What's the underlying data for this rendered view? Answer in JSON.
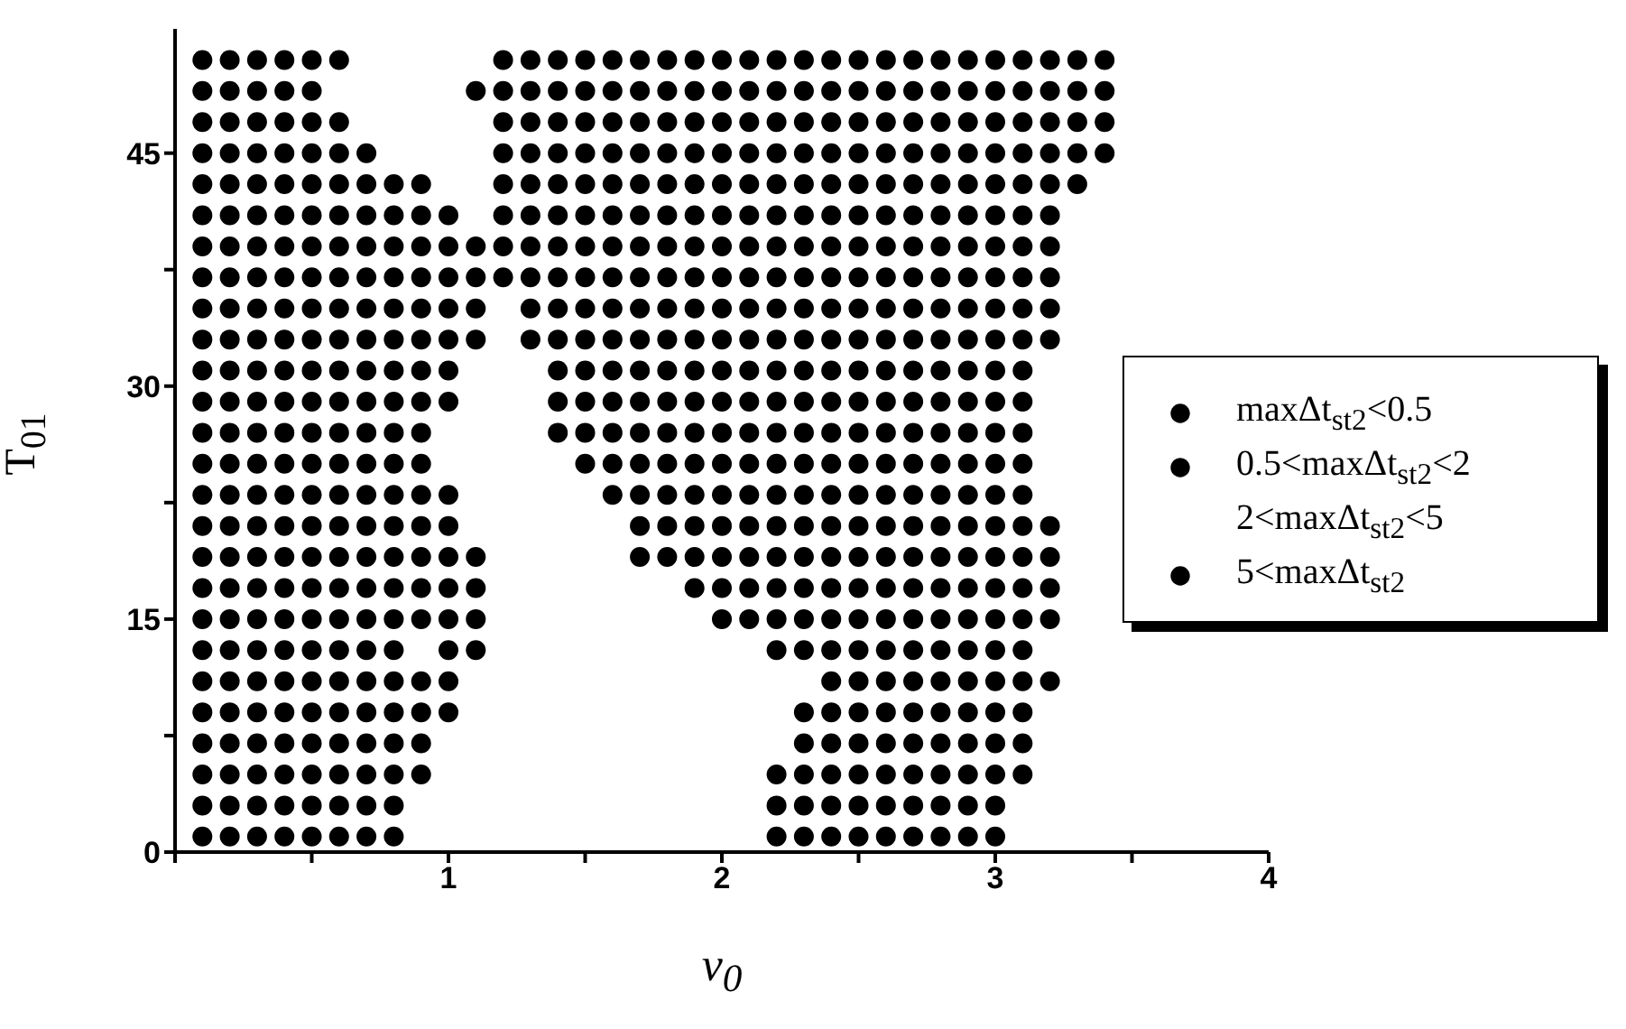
{
  "chart_data": {
    "type": "scatter",
    "xlabel": "v$_{0}$",
    "ylabel": "T$_{01}$",
    "xlim": [
      0,
      4
    ],
    "ylim": [
      0,
      53
    ],
    "xticks": [
      {
        "value": 0,
        "label": null
      },
      {
        "value": 0.5,
        "label": null
      },
      1,
      {
        "value": 1.5,
        "label": null
      },
      2,
      {
        "value": 2.5,
        "label": null
      },
      3,
      {
        "value": 3.5,
        "label": null
      },
      4
    ],
    "yticks": [
      0,
      {
        "value": 7.5,
        "label": null
      },
      15,
      {
        "value": 22.5,
        "label": null
      },
      30,
      {
        "value": 37.5,
        "label": null
      },
      45
    ],
    "grid": false,
    "legend": "right",
    "marker": "circle",
    "series": [
      {
        "name": "maxΔt$_{st2}$<0.5",
        "color": "#000000",
        "x": [
          0.1,
          0.1,
          0.1,
          0.1,
          0.1,
          0.1,
          0.1,
          0.1,
          0.1,
          0.1,
          0.1,
          0.1,
          0.1,
          0.1,
          0.1,
          0.1,
          0.1,
          0.1,
          0.1,
          0.1,
          0.1,
          0.1,
          0.1,
          0.1,
          0.1,
          0.1,
          0.2,
          0.2,
          0.2,
          0.2,
          0.2,
          0.2,
          0.2,
          0.2,
          0.2,
          0.2,
          0.2,
          0.2,
          0.2,
          0.2,
          0.2,
          0.2,
          0.2,
          0.2,
          0.2,
          0.2,
          0.2,
          0.2,
          0.2,
          0.2,
          0.2,
          0.2,
          0.3,
          0.3,
          0.3,
          0.3,
          0.3,
          0.3,
          0.3,
          0.3,
          0.3,
          0.3,
          0.3,
          0.3,
          0.3,
          0.3,
          0.3,
          0.3,
          0.3,
          0.3,
          0.3,
          0.3,
          0.3,
          0.3,
          0.3,
          0.3,
          0.3,
          0.3,
          0.4,
          0.4,
          0.4,
          0.4,
          0.4,
          0.4,
          0.4,
          0.4,
          0.4,
          0.4,
          0.4,
          0.4,
          0.4,
          0.4,
          0.4,
          0.4,
          0.4,
          0.4,
          0.4,
          0.4,
          0.4,
          0.4,
          0.4,
          0.4,
          0.4,
          0.4,
          0.5,
          0.5,
          0.5,
          0.5,
          0.5,
          0.5,
          0.5,
          0.5,
          0.5,
          0.5,
          0.5,
          0.5,
          0.5,
          0.5,
          0.5,
          0.5,
          0.5,
          0.5,
          0.5,
          0.5,
          0.5,
          0.5,
          0.5,
          0.5,
          0.5,
          0.5,
          0.6,
          0.6,
          0.6,
          0.6,
          0.6,
          0.6,
          0.6,
          0.6,
          0.6,
          0.6,
          0.6,
          0.6,
          0.6,
          0.6,
          0.6,
          0.6,
          0.6,
          0.6,
          0.6,
          0.6,
          0.6,
          0.6,
          0.6,
          0.6,
          0.6,
          0.7,
          0.7,
          0.7,
          0.7,
          0.7,
          0.7,
          0.7,
          0.7,
          0.7,
          0.7,
          0.7,
          0.7,
          0.7,
          0.7,
          0.7,
          0.7,
          0.7,
          0.7,
          0.7,
          0.7,
          0.7,
          0.7,
          0.7,
          0.8,
          0.8,
          0.8,
          0.8,
          0.8,
          0.8,
          0.8,
          0.8,
          0.8,
          0.8,
          0.8,
          0.8,
          0.8,
          0.8,
          0.8,
          0.8,
          0.8,
          0.8,
          0.8,
          0.8,
          0.8,
          0.8,
          0.9,
          0.9,
          0.9,
          0.9,
          0.9,
          0.9,
          0.9,
          0.9,
          0.9,
          0.9,
          0.9,
          0.9,
          0.9,
          0.9,
          0.9,
          0.9,
          0.9,
          0.9,
          0.9,
          1.0,
          1.0,
          1.0,
          1.0,
          1.0,
          1.0,
          1.0,
          1.0,
          1.0,
          1.0,
          1.0,
          1.0,
          1.0,
          1.0,
          1.0,
          1.1,
          1.1,
          1.1,
          1.1,
          1.1,
          1.1,
          1.1,
          1.1,
          1.1,
          1.2,
          1.2,
          1.2,
          1.2,
          1.2,
          1.2,
          1.2,
          1.2,
          1.3,
          1.3,
          1.3,
          1.3,
          1.3,
          1.3,
          1.3,
          1.3,
          1.3,
          1.3,
          1.4,
          1.4,
          1.4,
          1.4,
          1.4,
          1.4,
          1.4,
          1.4,
          1.4,
          1.4,
          1.4,
          1.4,
          1.4,
          1.5,
          1.5,
          1.5,
          1.5,
          1.5,
          1.5,
          1.5,
          1.5,
          1.5,
          1.5,
          1.5,
          1.5,
          1.5,
          1.5,
          1.6,
          1.6,
          1.6,
          1.6,
          1.6,
          1.6,
          1.6,
          1.6,
          1.6,
          1.6,
          1.6,
          1.6,
          1.6,
          1.6,
          1.6,
          1.7,
          1.7,
          1.7,
          1.7,
          1.7,
          1.7,
          1.7,
          1.7,
          1.7,
          1.7,
          1.7,
          1.7,
          1.7,
          1.7,
          1.7,
          1.7,
          1.7,
          1.8,
          1.8,
          1.8,
          1.8,
          1.8,
          1.8,
          1.8,
          1.8,
          1.8,
          1.8,
          1.8,
          1.8,
          1.8,
          1.8,
          1.8,
          1.8,
          1.8,
          1.9,
          1.9,
          1.9,
          1.9,
          1.9,
          1.9,
          1.9,
          1.9,
          1.9,
          1.9,
          1.9,
          1.9,
          1.9,
          1.9,
          1.9,
          1.9,
          1.9,
          1.9,
          2.0,
          2.0,
          2.0,
          2.0,
          2.0,
          2.0,
          2.0,
          2.0,
          2.0,
          2.0,
          2.0,
          2.0,
          2.0,
          2.0,
          2.0,
          2.0,
          2.0,
          2.0,
          2.0,
          2.1,
          2.1,
          2.1,
          2.1,
          2.1,
          2.1,
          2.1,
          2.1,
          2.1,
          2.1,
          2.1,
          2.1,
          2.1,
          2.1,
          2.1,
          2.1,
          2.1,
          2.1,
          2.1,
          2.2,
          2.2,
          2.2,
          2.2,
          2.2,
          2.2,
          2.2,
          2.2,
          2.2,
          2.2,
          2.2,
          2.2,
          2.2,
          2.2,
          2.2,
          2.2,
          2.2,
          2.2,
          2.2,
          2.2,
          2.2,
          2.2,
          2.2,
          2.3,
          2.3,
          2.3,
          2.3,
          2.3,
          2.3,
          2.3,
          2.3,
          2.3,
          2.3,
          2.3,
          2.3,
          2.3,
          2.3,
          2.3,
          2.3,
          2.3,
          2.3,
          2.3,
          2.3,
          2.3,
          2.3,
          2.3,
          2.3,
          2.3,
          2.4,
          2.4,
          2.4,
          2.4,
          2.4,
          2.4,
          2.4,
          2.4,
          2.4,
          2.4,
          2.4,
          2.4,
          2.4,
          2.4,
          2.4,
          2.4,
          2.4,
          2.4,
          2.4,
          2.4,
          2.4,
          2.4,
          2.4,
          2.4,
          2.4,
          2.4,
          2.5,
          2.5,
          2.5,
          2.5,
          2.5,
          2.5,
          2.5,
          2.5,
          2.5,
          2.5,
          2.5,
          2.5,
          2.5,
          2.5,
          2.5,
          2.5,
          2.5,
          2.5,
          2.5,
          2.5,
          2.5,
          2.5,
          2.5,
          2.5,
          2.5,
          2.5,
          2.6,
          2.6,
          2.6,
          2.6,
          2.6,
          2.6,
          2.6,
          2.6,
          2.6,
          2.6,
          2.6,
          2.6,
          2.6,
          2.6,
          2.6,
          2.6,
          2.6,
          2.6,
          2.6,
          2.6,
          2.6,
          2.6,
          2.6,
          2.6,
          2.6,
          2.6,
          2.7,
          2.7,
          2.7,
          2.7,
          2.7,
          2.7,
          2.7,
          2.7,
          2.7,
          2.7,
          2.7,
          2.7,
          2.7,
          2.7,
          2.7,
          2.7,
          2.7,
          2.7,
          2.7,
          2.7,
          2.7,
          2.7,
          2.7,
          2.7,
          2.7,
          2.7,
          2.8,
          2.8,
          2.8,
          2.8,
          2.8,
          2.8,
          2.8,
          2.8,
          2.8,
          2.8,
          2.8,
          2.8,
          2.8,
          2.8,
          2.8,
          2.8,
          2.8,
          2.8,
          2.8,
          2.8,
          2.8,
          2.8,
          2.8,
          2.8,
          2.8,
          2.8,
          2.9,
          2.9,
          2.9,
          2.9,
          2.9,
          2.9,
          2.9,
          2.9,
          2.9,
          2.9,
          2.9,
          2.9,
          2.9,
          2.9,
          2.9,
          2.9,
          2.9,
          2.9,
          2.9,
          2.9,
          2.9,
          2.9,
          2.9,
          2.9,
          2.9,
          2.9,
          3.0,
          3.0,
          3.0,
          3.0,
          3.0,
          3.0,
          3.0,
          3.0,
          3.0,
          3.0,
          3.0,
          3.0,
          3.0,
          3.0,
          3.0,
          3.0,
          3.0,
          3.0,
          3.0,
          3.0,
          3.0,
          3.0,
          3.0,
          3.0,
          3.0,
          3.0,
          3.1,
          3.1,
          3.1,
          3.1,
          3.1,
          3.1,
          3.1,
          3.1,
          3.1,
          3.1,
          3.1,
          3.1,
          3.1,
          3.1,
          3.1,
          3.1,
          3.1,
          3.1,
          3.1,
          3.1,
          3.1,
          3.1,
          3.1,
          3.1,
          3.2,
          3.2,
          3.2,
          3.2,
          3.2,
          3.2,
          3.2,
          3.2,
          3.2,
          3.2,
          3.2,
          3.2,
          3.2,
          3.2,
          3.2,
          3.3,
          3.3,
          3.3,
          3.3,
          3.3,
          3.4,
          3.4,
          3.4,
          3.4
        ],
        "values": [
          1,
          3,
          5,
          7,
          9,
          11,
          13,
          15,
          17,
          19,
          21,
          23,
          25,
          27,
          29,
          31,
          33,
          35,
          37,
          39,
          41,
          43,
          45,
          47,
          49,
          51,
          1,
          3,
          5,
          7,
          9,
          11,
          13,
          15,
          17,
          19,
          21,
          23,
          25,
          27,
          29,
          31,
          33,
          35,
          37,
          39,
          41,
          43,
          45,
          47,
          49,
          51,
          1,
          3,
          5,
          7,
          9,
          11,
          13,
          15,
          17,
          19,
          21,
          23,
          25,
          27,
          29,
          31,
          33,
          35,
          37,
          39,
          41,
          43,
          45,
          47,
          49,
          51,
          1,
          3,
          5,
          7,
          9,
          11,
          13,
          15,
          17,
          19,
          21,
          23,
          25,
          27,
          29,
          31,
          33,
          35,
          37,
          39,
          41,
          43,
          45,
          47,
          49,
          51,
          1,
          3,
          5,
          7,
          9,
          11,
          13,
          15,
          17,
          19,
          21,
          23,
          25,
          27,
          29,
          31,
          33,
          35,
          37,
          39,
          41,
          43,
          45,
          47,
          49,
          51,
          1,
          3,
          5,
          7,
          9,
          11,
          13,
          15,
          17,
          19,
          21,
          23,
          25,
          27,
          29,
          31,
          33,
          35,
          37,
          39,
          41,
          43,
          45,
          47,
          51,
          1,
          3,
          5,
          7,
          9,
          11,
          13,
          15,
          17,
          19,
          21,
          23,
          25,
          27,
          29,
          31,
          33,
          35,
          37,
          39,
          41,
          43,
          45,
          1,
          3,
          5,
          7,
          9,
          11,
          13,
          15,
          17,
          19,
          21,
          23,
          25,
          27,
          29,
          31,
          33,
          35,
          37,
          39,
          41,
          43,
          5,
          7,
          9,
          11,
          15,
          17,
          19,
          21,
          23,
          25,
          27,
          29,
          31,
          33,
          35,
          37,
          39,
          41,
          43,
          9,
          11,
          13,
          15,
          17,
          19,
          21,
          23,
          29,
          31,
          33,
          35,
          37,
          39,
          41,
          13,
          15,
          17,
          19,
          33,
          35,
          37,
          39,
          49,
          37,
          39,
          41,
          43,
          45,
          47,
          49,
          51,
          33,
          35,
          37,
          39,
          41,
          43,
          45,
          47,
          49,
          51,
          27,
          29,
          31,
          33,
          35,
          37,
          39,
          41,
          43,
          45,
          47,
          49,
          51,
          25,
          27,
          29,
          31,
          33,
          35,
          37,
          39,
          41,
          43,
          45,
          47,
          49,
          51,
          23,
          25,
          27,
          29,
          31,
          33,
          35,
          37,
          39,
          41,
          43,
          45,
          47,
          49,
          51,
          19,
          21,
          23,
          25,
          27,
          29,
          31,
          33,
          35,
          37,
          39,
          41,
          43,
          45,
          47,
          49,
          51,
          19,
          21,
          23,
          25,
          27,
          29,
          31,
          33,
          35,
          37,
          39,
          41,
          43,
          45,
          47,
          49,
          51,
          17,
          19,
          21,
          23,
          25,
          27,
          29,
          31,
          33,
          35,
          37,
          39,
          41,
          43,
          45,
          47,
          49,
          51,
          15,
          17,
          19,
          21,
          23,
          25,
          27,
          29,
          31,
          33,
          35,
          37,
          39,
          41,
          43,
          45,
          47,
          49,
          51,
          15,
          17,
          19,
          21,
          23,
          25,
          27,
          29,
          31,
          33,
          35,
          37,
          39,
          41,
          43,
          45,
          47,
          49,
          51,
          1,
          3,
          5,
          13,
          15,
          17,
          19,
          21,
          23,
          25,
          27,
          29,
          31,
          33,
          35,
          37,
          39,
          41,
          43,
          45,
          47,
          49,
          51,
          1,
          3,
          5,
          7,
          9,
          13,
          15,
          17,
          19,
          21,
          23,
          25,
          27,
          29,
          31,
          33,
          35,
          37,
          39,
          41,
          43,
          45,
          47,
          49,
          51,
          1,
          3,
          5,
          7,
          9,
          11,
          13,
          15,
          17,
          19,
          21,
          23,
          25,
          27,
          29,
          31,
          33,
          35,
          37,
          39,
          41,
          43,
          45,
          47,
          49,
          51,
          1,
          3,
          5,
          7,
          9,
          11,
          13,
          15,
          17,
          19,
          21,
          23,
          25,
          27,
          29,
          31,
          33,
          35,
          37,
          39,
          41,
          43,
          45,
          47,
          49,
          51,
          1,
          3,
          5,
          7,
          9,
          11,
          13,
          15,
          17,
          19,
          21,
          23,
          25,
          27,
          29,
          31,
          33,
          35,
          37,
          39,
          41,
          43,
          45,
          47,
          49,
          51,
          1,
          3,
          5,
          7,
          9,
          11,
          13,
          15,
          17,
          19,
          21,
          23,
          25,
          27,
          29,
          31,
          33,
          35,
          37,
          39,
          41,
          43,
          45,
          47,
          49,
          51,
          1,
          3,
          5,
          7,
          9,
          11,
          13,
          15,
          17,
          19,
          21,
          23,
          25,
          27,
          29,
          31,
          33,
          35,
          37,
          39,
          41,
          43,
          45,
          47,
          49,
          51,
          1,
          3,
          5,
          7,
          9,
          11,
          13,
          15,
          17,
          19,
          21,
          23,
          25,
          27,
          29,
          31,
          33,
          35,
          37,
          39,
          41,
          43,
          45,
          47,
          49,
          51,
          1,
          3,
          5,
          7,
          9,
          11,
          13,
          15,
          17,
          19,
          21,
          23,
          25,
          27,
          29,
          31,
          33,
          35,
          37,
          39,
          41,
          43,
          45,
          47,
          49,
          51,
          5,
          7,
          9,
          11,
          13,
          15,
          17,
          19,
          21,
          23,
          25,
          27,
          29,
          31,
          33,
          35,
          37,
          39,
          41,
          43,
          45,
          47,
          49,
          51,
          11,
          15,
          17,
          19,
          21,
          33,
          35,
          37,
          39,
          41,
          43,
          45,
          47,
          49,
          51,
          43,
          45,
          47,
          49,
          51,
          45,
          47,
          49,
          51
        ]
      },
      {
        "name": "0.5<maxΔt$_{st2}$<2",
        "color": "#000000"
      },
      {
        "name": "2<maxΔt$_{st2}$<5"
      },
      {
        "name": "5<maxΔt$_{st2}$",
        "color": "#000000"
      }
    ]
  }
}
